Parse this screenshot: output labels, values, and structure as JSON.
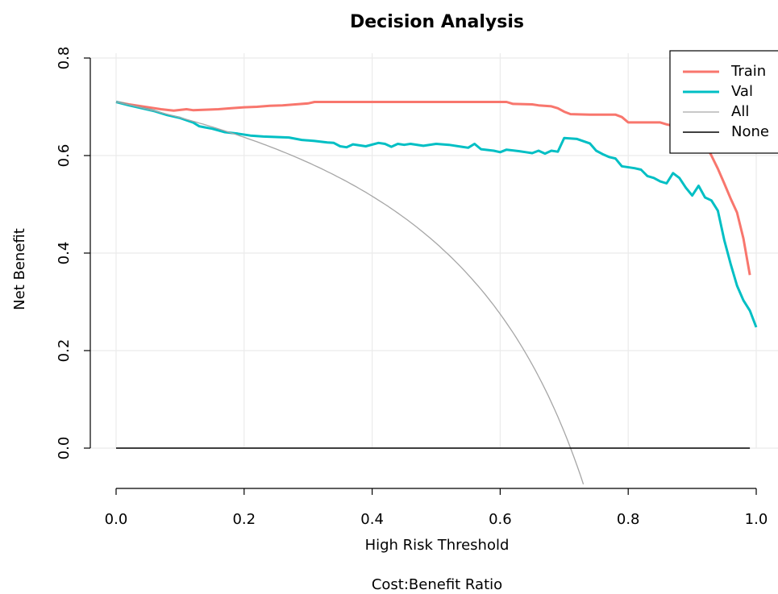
{
  "chart_data": {
    "type": "line",
    "title": "Decision Analysis",
    "xlabel": "High Risk Threshold",
    "ylabel": "Net Benefit",
    "secondary_xlabel": "Cost:Benefit Ratio",
    "xlim": [
      0,
      1.0
    ],
    "ylim": [
      -0.08,
      0.8
    ],
    "x_ticks": [
      "0.0",
      "0.2",
      "0.4",
      "0.6",
      "0.8",
      "1.0"
    ],
    "y_ticks": [
      "0.0",
      "0.2",
      "0.4",
      "0.6",
      "0.8"
    ],
    "grid": true,
    "legend_position": "top-right",
    "prevalence": 0.71,
    "series": [
      {
        "name": "Train",
        "color": "#F8766D",
        "points": [
          [
            0.0,
            0.71
          ],
          [
            0.02,
            0.705
          ],
          [
            0.05,
            0.699
          ],
          [
            0.07,
            0.695
          ],
          [
            0.09,
            0.692
          ],
          [
            0.11,
            0.695
          ],
          [
            0.12,
            0.693
          ],
          [
            0.14,
            0.694
          ],
          [
            0.16,
            0.695
          ],
          [
            0.18,
            0.697
          ],
          [
            0.2,
            0.699
          ],
          [
            0.22,
            0.7
          ],
          [
            0.24,
            0.702
          ],
          [
            0.26,
            0.703
          ],
          [
            0.28,
            0.705
          ],
          [
            0.3,
            0.707
          ],
          [
            0.31,
            0.71
          ],
          [
            0.4,
            0.71
          ],
          [
            0.5,
            0.71
          ],
          [
            0.58,
            0.71
          ],
          [
            0.61,
            0.71
          ],
          [
            0.62,
            0.706
          ],
          [
            0.65,
            0.705
          ],
          [
            0.66,
            0.703
          ],
          [
            0.68,
            0.701
          ],
          [
            0.69,
            0.697
          ],
          [
            0.7,
            0.69
          ],
          [
            0.71,
            0.685
          ],
          [
            0.74,
            0.684
          ],
          [
            0.77,
            0.684
          ],
          [
            0.78,
            0.684
          ],
          [
            0.79,
            0.679
          ],
          [
            0.8,
            0.668
          ],
          [
            0.83,
            0.668
          ],
          [
            0.85,
            0.668
          ],
          [
            0.86,
            0.664
          ],
          [
            0.88,
            0.658
          ],
          [
            0.9,
            0.648
          ],
          [
            0.91,
            0.638
          ],
          [
            0.92,
            0.625
          ],
          [
            0.93,
            0.6
          ],
          [
            0.94,
            0.573
          ],
          [
            0.95,
            0.543
          ],
          [
            0.96,
            0.512
          ],
          [
            0.97,
            0.483
          ],
          [
            0.98,
            0.43
          ],
          [
            0.99,
            0.355
          ]
        ]
      },
      {
        "name": "Val",
        "color": "#00BFC4",
        "points": [
          [
            0.0,
            0.71
          ],
          [
            0.02,
            0.703
          ],
          [
            0.04,
            0.697
          ],
          [
            0.06,
            0.691
          ],
          [
            0.08,
            0.683
          ],
          [
            0.1,
            0.677
          ],
          [
            0.12,
            0.668
          ],
          [
            0.13,
            0.66
          ],
          [
            0.15,
            0.655
          ],
          [
            0.17,
            0.648
          ],
          [
            0.19,
            0.645
          ],
          [
            0.21,
            0.641
          ],
          [
            0.23,
            0.639
          ],
          [
            0.25,
            0.638
          ],
          [
            0.27,
            0.637
          ],
          [
            0.29,
            0.632
          ],
          [
            0.31,
            0.63
          ],
          [
            0.33,
            0.627
          ],
          [
            0.34,
            0.626
          ],
          [
            0.35,
            0.619
          ],
          [
            0.36,
            0.617
          ],
          [
            0.37,
            0.623
          ],
          [
            0.39,
            0.619
          ],
          [
            0.41,
            0.626
          ],
          [
            0.42,
            0.624
          ],
          [
            0.43,
            0.618
          ],
          [
            0.44,
            0.624
          ],
          [
            0.45,
            0.622
          ],
          [
            0.46,
            0.624
          ],
          [
            0.48,
            0.62
          ],
          [
            0.5,
            0.624
          ],
          [
            0.52,
            0.622
          ],
          [
            0.54,
            0.618
          ],
          [
            0.55,
            0.616
          ],
          [
            0.56,
            0.624
          ],
          [
            0.57,
            0.613
          ],
          [
            0.59,
            0.61
          ],
          [
            0.6,
            0.607
          ],
          [
            0.61,
            0.612
          ],
          [
            0.63,
            0.609
          ],
          [
            0.64,
            0.607
          ],
          [
            0.65,
            0.605
          ],
          [
            0.66,
            0.61
          ],
          [
            0.67,
            0.604
          ],
          [
            0.68,
            0.61
          ],
          [
            0.69,
            0.608
          ],
          [
            0.7,
            0.636
          ],
          [
            0.72,
            0.634
          ],
          [
            0.74,
            0.625
          ],
          [
            0.75,
            0.61
          ],
          [
            0.76,
            0.603
          ],
          [
            0.77,
            0.597
          ],
          [
            0.78,
            0.594
          ],
          [
            0.79,
            0.578
          ],
          [
            0.81,
            0.574
          ],
          [
            0.82,
            0.571
          ],
          [
            0.83,
            0.558
          ],
          [
            0.84,
            0.554
          ],
          [
            0.85,
            0.547
          ],
          [
            0.86,
            0.543
          ],
          [
            0.87,
            0.564
          ],
          [
            0.88,
            0.554
          ],
          [
            0.89,
            0.534
          ],
          [
            0.9,
            0.518
          ],
          [
            0.91,
            0.538
          ],
          [
            0.92,
            0.514
          ],
          [
            0.93,
            0.508
          ],
          [
            0.94,
            0.487
          ],
          [
            0.95,
            0.427
          ],
          [
            0.96,
            0.378
          ],
          [
            0.97,
            0.333
          ],
          [
            0.98,
            0.303
          ],
          [
            0.99,
            0.282
          ],
          [
            1.0,
            0.248
          ]
        ]
      },
      {
        "name": "All",
        "color": "#A6A6A6"
      },
      {
        "name": "None",
        "color": "#000000",
        "points": [
          [
            0.0,
            0.0
          ],
          [
            0.99,
            0.0
          ]
        ]
      }
    ]
  }
}
